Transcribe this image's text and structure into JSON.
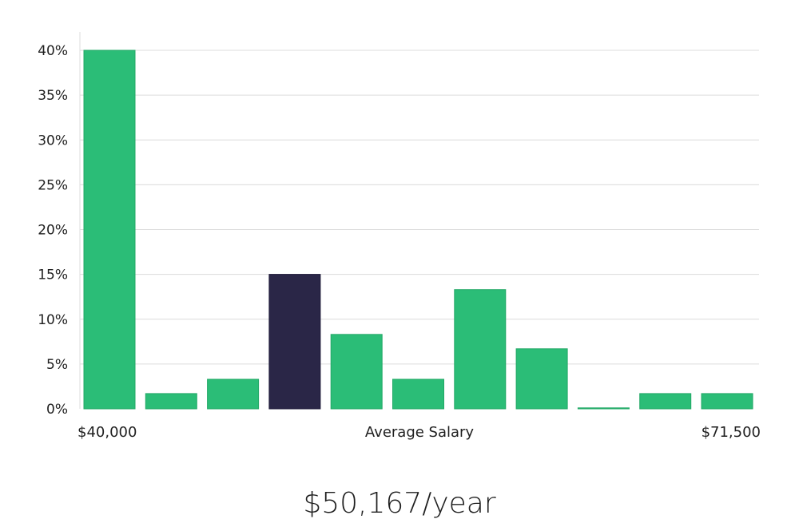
{
  "chart_data": {
    "type": "bar",
    "values": [
      40.0,
      1.7,
      3.3,
      15.0,
      8.3,
      3.3,
      13.3,
      6.7,
      0.0,
      1.7,
      1.7
    ],
    "highlight_index": 3,
    "ylim": [
      0,
      40
    ],
    "yticks": [
      0,
      5,
      10,
      15,
      20,
      25,
      30,
      35,
      40
    ],
    "ytick_suffix": "%",
    "grid": true,
    "xlabel_left": "$40,000",
    "xlabel": "Average Salary",
    "xlabel_right": "$71,500",
    "colors": {
      "bar": "#2bbd77",
      "highlight": "#2a2647"
    }
  },
  "salary_text": "$50,167/year"
}
